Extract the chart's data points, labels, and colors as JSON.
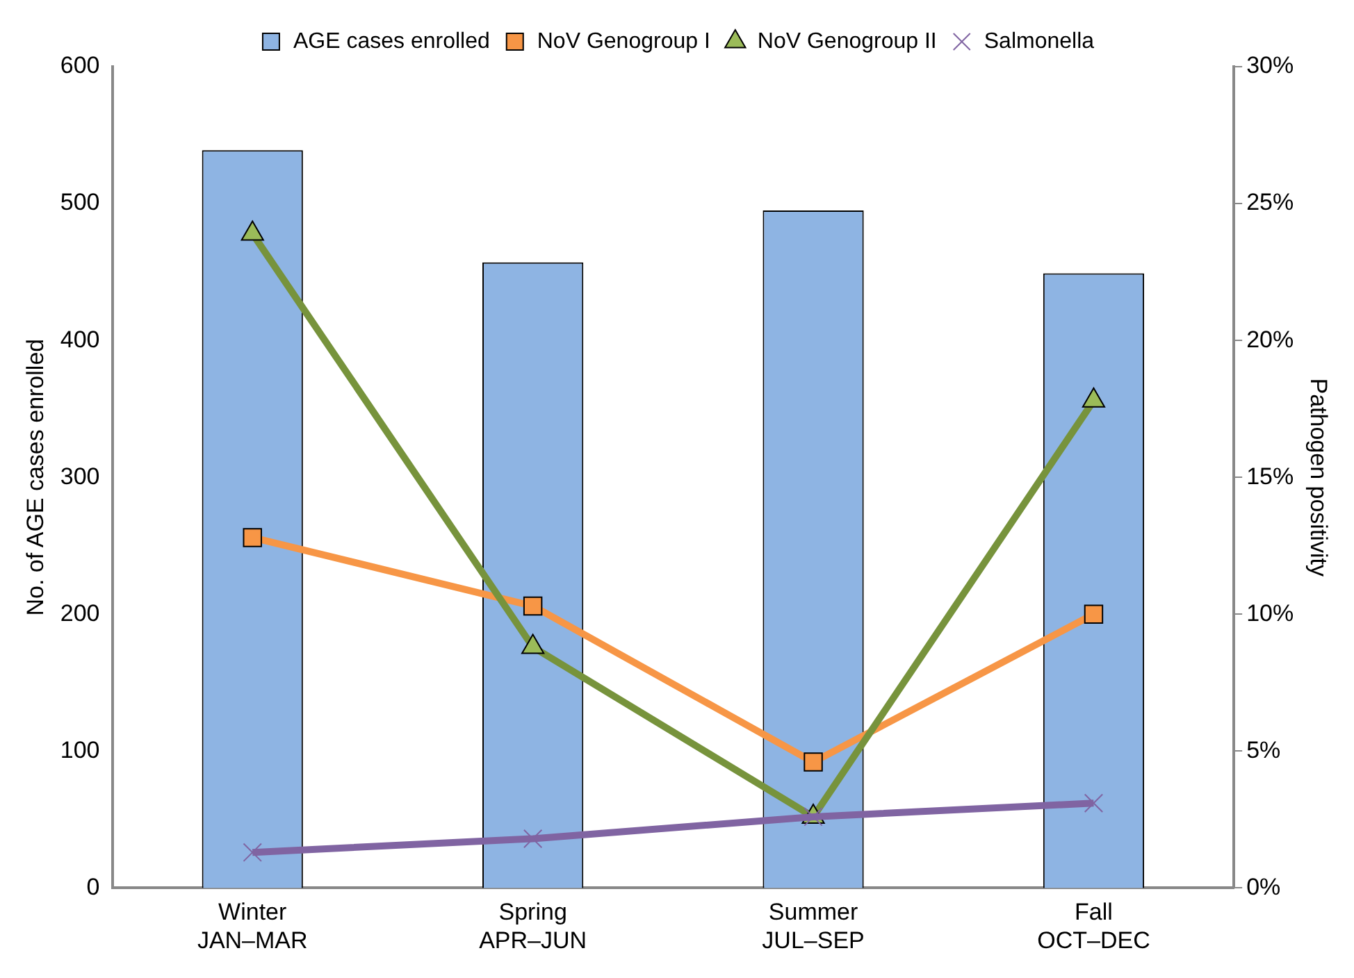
{
  "chart_data": {
    "type": "bar",
    "categories": [
      "Winter\nJAN–MAR",
      "Spring\nAPR–JUN",
      "Summer\nJUL–SEP",
      "Fall\nOCT–DEC"
    ],
    "series": [
      {
        "name": "AGE cases enrolled",
        "color": "#8eb4e3",
        "values": [
          539,
          457,
          495,
          449
        ]
      },
      {
        "name": "NoV Genogroup I",
        "type": "line",
        "axis": "y2",
        "marker": "square",
        "color": "#f79646",
        "values": [
          12.8,
          10.3,
          4.6,
          10.0
        ]
      },
      {
        "name": "NoV Genogroup II",
        "type": "line",
        "axis": "y2",
        "marker": "triangle",
        "color": "#77933c",
        "values": [
          23.9,
          8.8,
          2.6,
          17.8
        ]
      },
      {
        "name": "Salmonella",
        "type": "line",
        "axis": "y2",
        "marker": "cross",
        "color": "#8064a2",
        "values": [
          1.3,
          1.8,
          2.6,
          3.1
        ]
      }
    ],
    "ylabel": "No. of AGE cases enrolled",
    "y2label": "Pathogen positivity",
    "ylim": [
      0,
      600
    ],
    "yticks": [
      0,
      100,
      200,
      300,
      400,
      500,
      600
    ],
    "y2lim": [
      0,
      30
    ],
    "y2ticks": [
      {
        "value": 0,
        "label": "0%"
      },
      {
        "value": 5,
        "label": "5%"
      },
      {
        "value": 10,
        "label": "10%"
      },
      {
        "value": 15,
        "label": "15%"
      },
      {
        "value": 20,
        "label": "20%"
      },
      {
        "value": 25,
        "label": "25%"
      },
      {
        "value": 30,
        "label": "30%"
      }
    ],
    "grid": false,
    "legend": "top"
  }
}
